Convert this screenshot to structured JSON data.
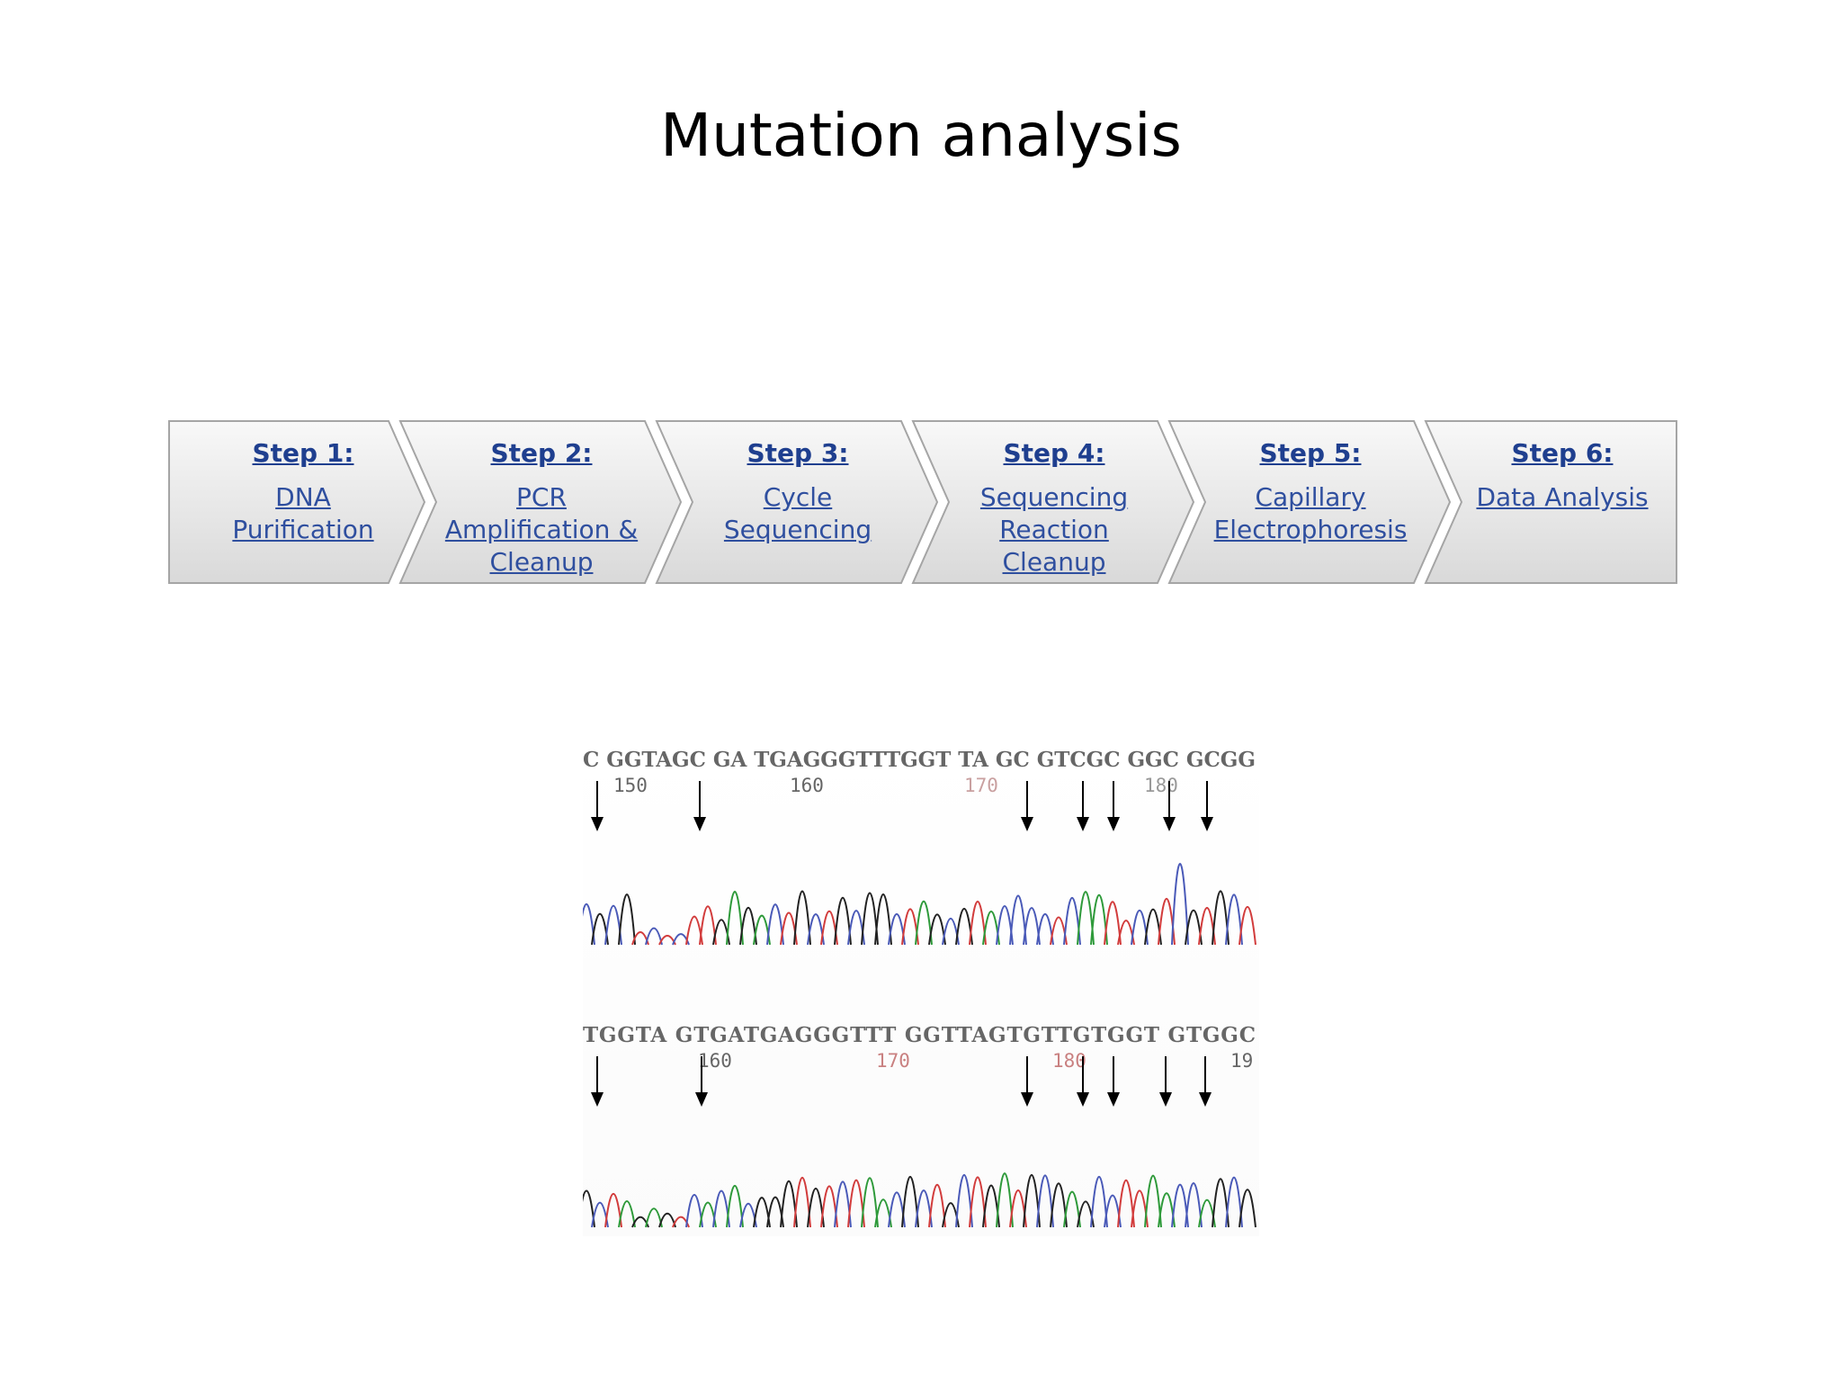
{
  "slide": {
    "title": "Mutation analysis"
  },
  "workflow": {
    "steps": [
      {
        "label": "Step 1:",
        "desc": [
          "DNA",
          "Purification"
        ]
      },
      {
        "label": "Step 2:",
        "desc": [
          "PCR",
          "Amplification &",
          "Cleanup"
        ]
      },
      {
        "label": "Step 3:",
        "desc": [
          "Cycle",
          "Sequencing"
        ]
      },
      {
        "label": "Step 4:",
        "desc": [
          "Sequencing",
          "Reaction",
          "Cleanup"
        ]
      },
      {
        "label": "Step 5:",
        "desc": [
          "Capillary",
          "Electrophoresis"
        ]
      },
      {
        "label": "Step 6:",
        "desc": [
          "Data Analysis"
        ]
      }
    ]
  },
  "chromatograms": [
    {
      "sequence": "C GGTAGC GA TGAGGGTTTGGT TA GC GTCGC GGC GCGG",
      "position_labels": [
        "150",
        "160",
        "170",
        "180"
      ],
      "arrow_count": 7
    },
    {
      "sequence": "TGGTA GTGATGAGGGTTT GGTTAGTGTTGTGGT GTGGC",
      "position_labels": [
        "160",
        "170",
        "180",
        "19"
      ],
      "arrow_count": 7
    }
  ],
  "colors": {
    "link": "#1f3f8f",
    "A": "#2e9a3a",
    "C": "#4a5ab8",
    "G": "#222222",
    "T": "#d23c3c"
  }
}
